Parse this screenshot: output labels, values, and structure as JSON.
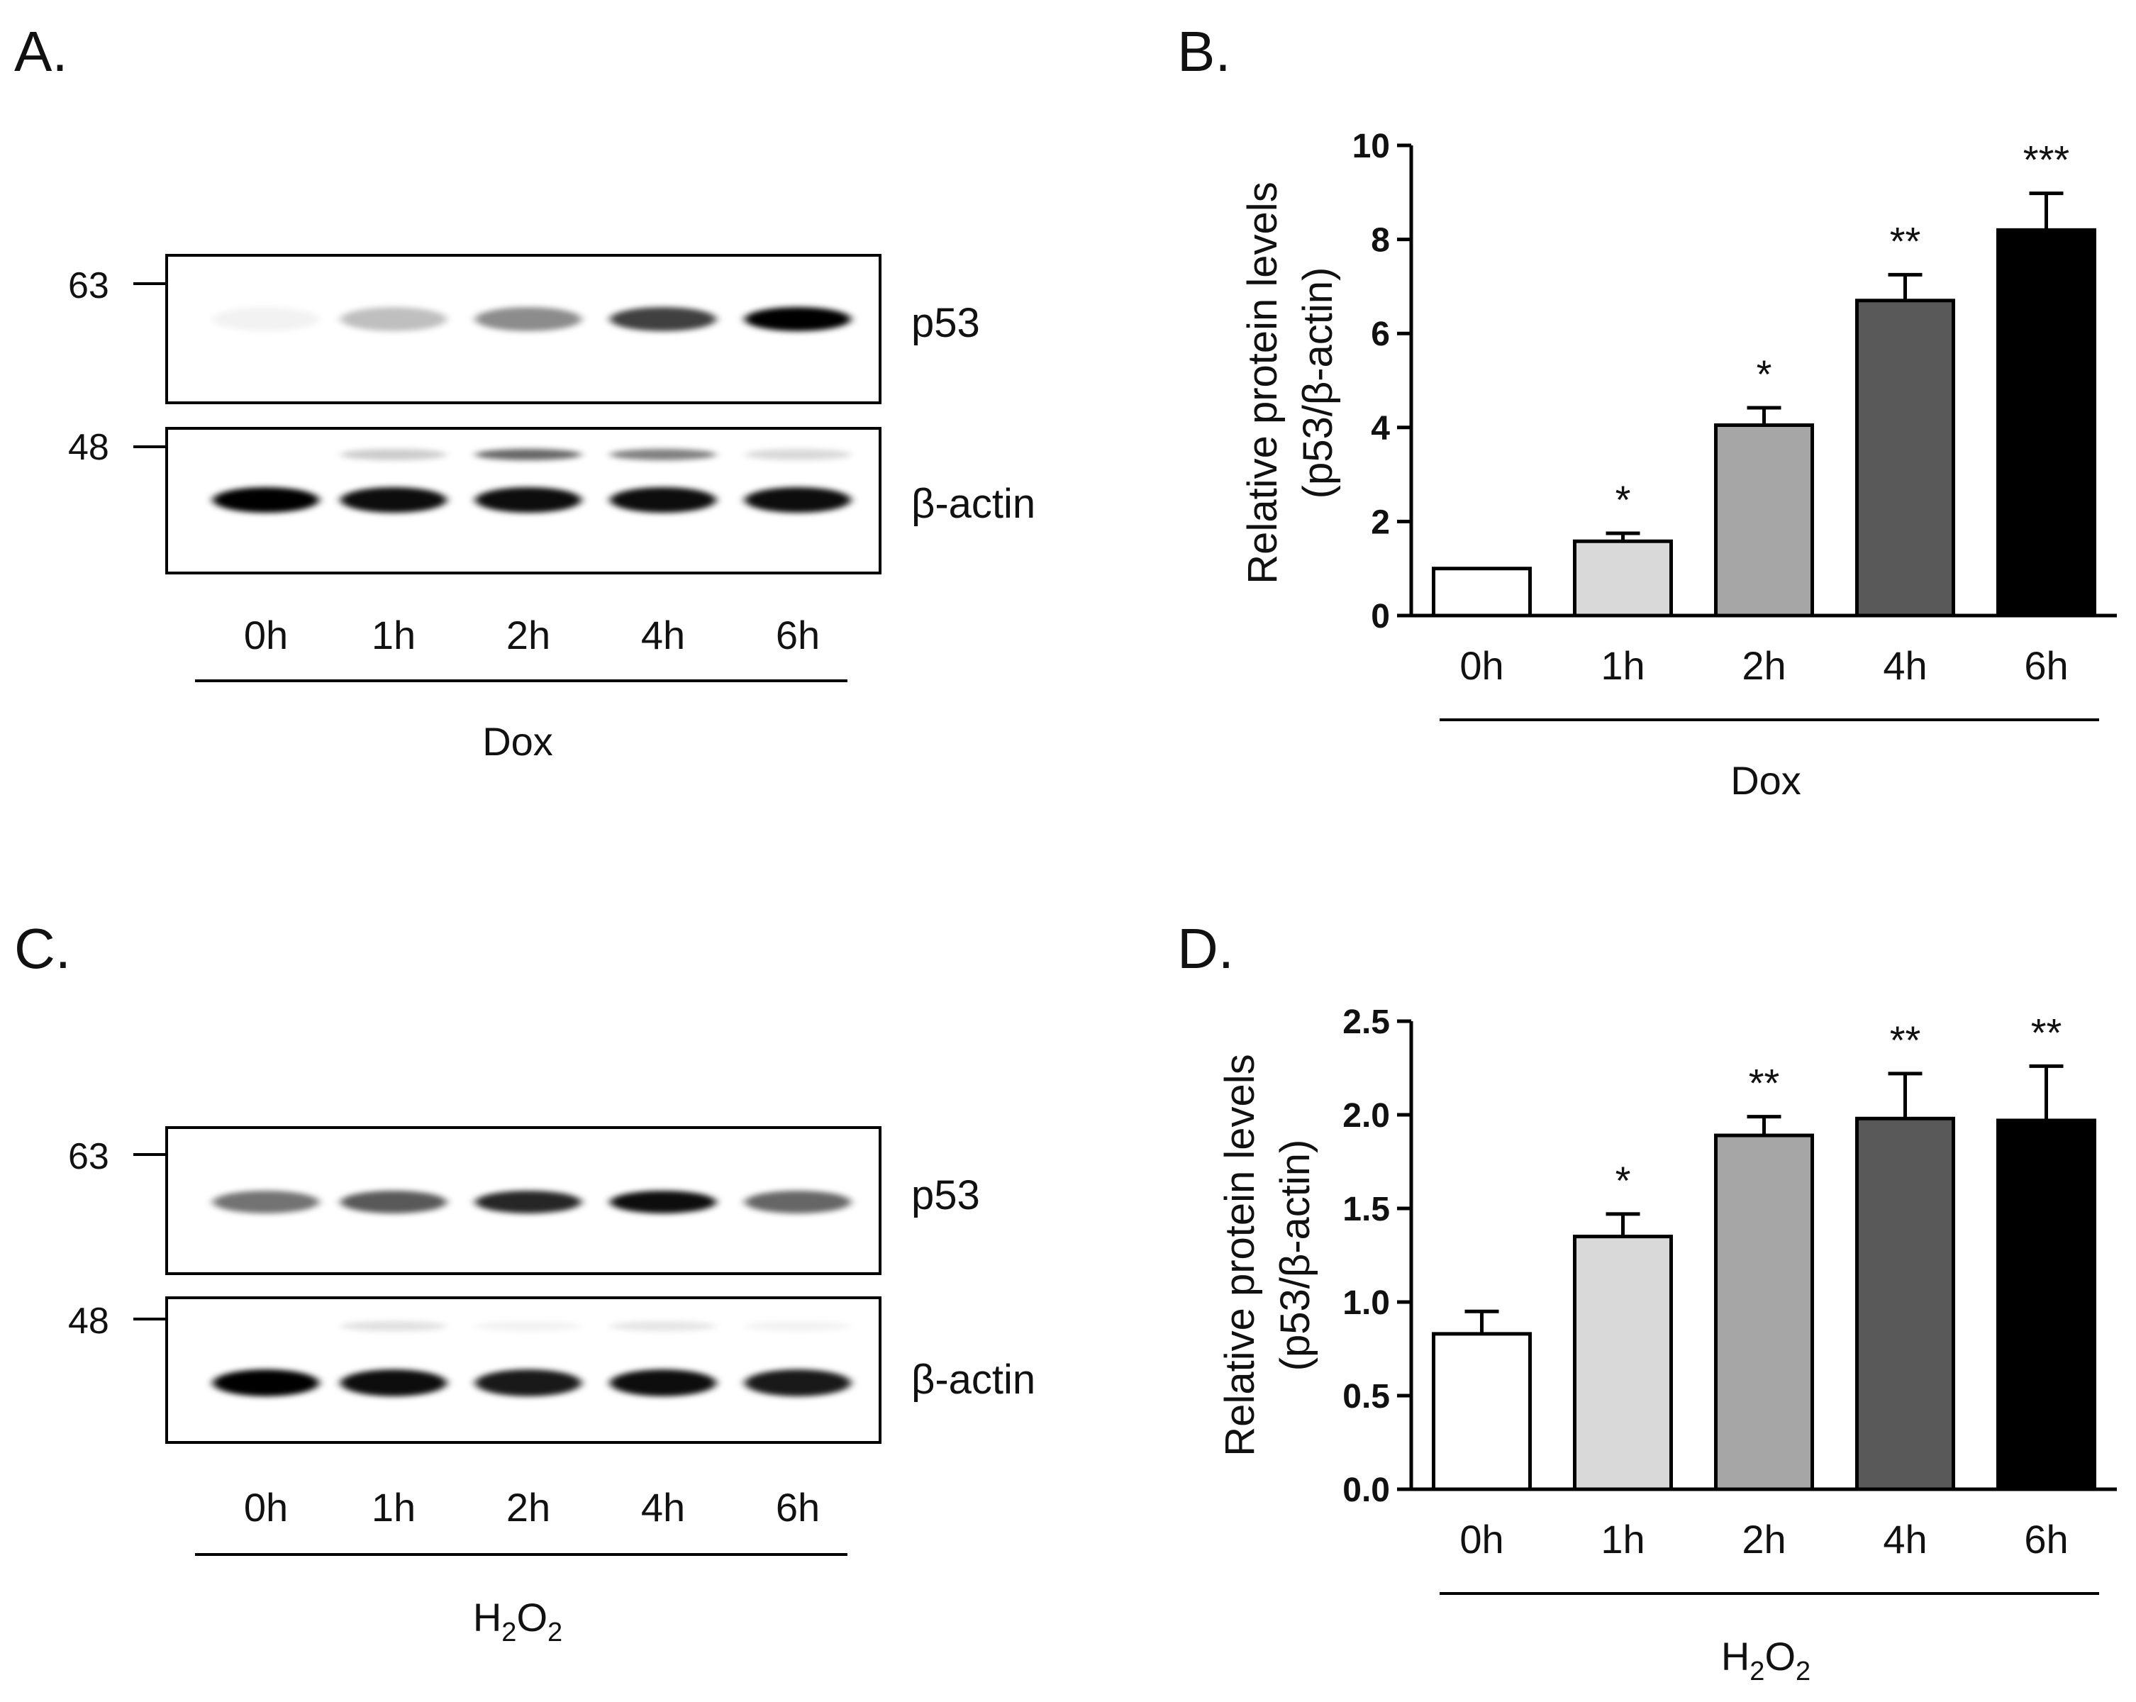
{
  "panels": {
    "a": {
      "label": "A.",
      "marker_top": "63",
      "marker_bottom": "48",
      "band_top": "p53",
      "band_bottom": "β-actin",
      "lanes": [
        "0h",
        "1h",
        "2h",
        "4h",
        "6h"
      ],
      "treatment": "Dox",
      "p53_intensity": [
        0.05,
        0.25,
        0.45,
        0.75,
        1.0
      ],
      "nonspecific_intensity": [
        0.0,
        0.2,
        0.6,
        0.5,
        0.15
      ],
      "actin_intensity": [
        1.0,
        0.95,
        0.95,
        0.95,
        0.95
      ]
    },
    "c": {
      "label": "C.",
      "marker_top": "63",
      "marker_bottom": "48",
      "band_top": "p53",
      "band_bottom": "β-actin",
      "lanes": [
        "0h",
        "1h",
        "2h",
        "4h",
        "6h"
      ],
      "treatment_main": "H",
      "treatment_sub1": "2",
      "treatment_mid": "O",
      "treatment_sub2": "2",
      "p53_intensity": [
        0.55,
        0.65,
        0.85,
        0.95,
        0.6
      ],
      "nonspecific_intensity": [
        0.0,
        0.12,
        0.05,
        0.1,
        0.05
      ],
      "actin_intensity": [
        1.0,
        0.95,
        0.9,
        0.95,
        0.9
      ]
    }
  },
  "chart_data": [
    {
      "type": "bar",
      "panel_label": "B.",
      "categories": [
        "0h",
        "1h",
        "2h",
        "4h",
        "6h"
      ],
      "values": [
        1.0,
        1.58,
        4.05,
        6.7,
        8.2
      ],
      "error": [
        0.0,
        0.17,
        0.37,
        0.55,
        0.78
      ],
      "significance": [
        "",
        "*",
        "*",
        "**",
        "***"
      ],
      "bar_colors": [
        "#ffffff",
        "#d9d9d9",
        "#a6a6a6",
        "#595959",
        "#000000"
      ],
      "ylabel_line1": "Relative protein levels",
      "ylabel_line2": "(p53/β-actin)",
      "ylim": [
        0,
        10
      ],
      "yticks": [
        0,
        2,
        4,
        6,
        8,
        10
      ],
      "ytick_labels": [
        "0",
        "2",
        "4",
        "6",
        "8",
        "10"
      ],
      "group_label": "Dox"
    },
    {
      "type": "bar",
      "panel_label": "D.",
      "categories": [
        "0h",
        "1h",
        "2h",
        "4h",
        "6h"
      ],
      "values": [
        0.83,
        1.35,
        1.89,
        1.98,
        1.97
      ],
      "error": [
        0.12,
        0.12,
        0.1,
        0.24,
        0.29
      ],
      "significance": [
        "",
        "*",
        "**",
        "**",
        "**"
      ],
      "bar_colors": [
        "#ffffff",
        "#d9d9d9",
        "#a6a6a6",
        "#595959",
        "#000000"
      ],
      "ylabel_line1": "Relative protein levels",
      "ylabel_line2": "(p53/β-actin)",
      "ylim": [
        0,
        2.5
      ],
      "yticks": [
        0,
        0.5,
        1.0,
        1.5,
        2.0,
        2.5
      ],
      "ytick_labels": [
        "0.0",
        "0.5",
        "1.0",
        "1.5",
        "2.0",
        "2.5"
      ],
      "group_label_main": "H",
      "group_label_sub1": "2",
      "group_label_mid": "O",
      "group_label_sub2": "2"
    }
  ]
}
